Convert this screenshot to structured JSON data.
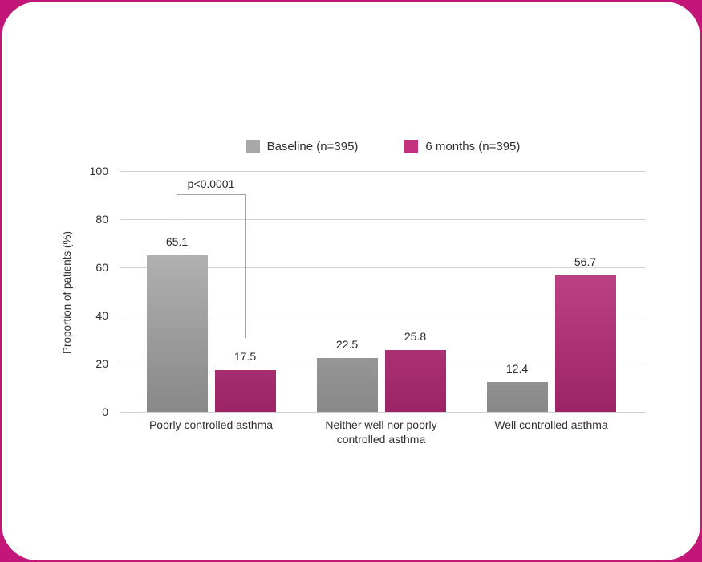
{
  "page": {
    "background_color": "#c21778",
    "card_color": "#ffffff"
  },
  "legend": {
    "items": [
      {
        "label": "Baseline (n=395)",
        "color": "#a8a8a8"
      },
      {
        "label": "6 months (n=395)",
        "color": "#c43181"
      }
    ]
  },
  "chart_data": {
    "type": "bar",
    "title": "",
    "xlabel": "",
    "ylabel": "Proportion of patients (%)",
    "ylim": [
      0,
      100
    ],
    "yticks": [
      0,
      20,
      40,
      60,
      80,
      100
    ],
    "grid": true,
    "legend_position": "top-center",
    "categories": [
      "Poorly controlled asthma",
      "Neither well nor poorly controlled asthma",
      "Well controlled asthma"
    ],
    "series": [
      {
        "name": "Baseline (n=395)",
        "color_top": "#c6c6c6",
        "color_bottom": "#888888",
        "values": [
          65.1,
          22.5,
          12.4
        ]
      },
      {
        "name": "6 months (n=395)",
        "color_top": "#d4549b",
        "color_bottom": "#9c2466",
        "values": [
          17.5,
          25.8,
          56.7
        ]
      }
    ],
    "annotation": {
      "text": "p<0.0001",
      "category": "Poorly controlled asthma"
    }
  }
}
